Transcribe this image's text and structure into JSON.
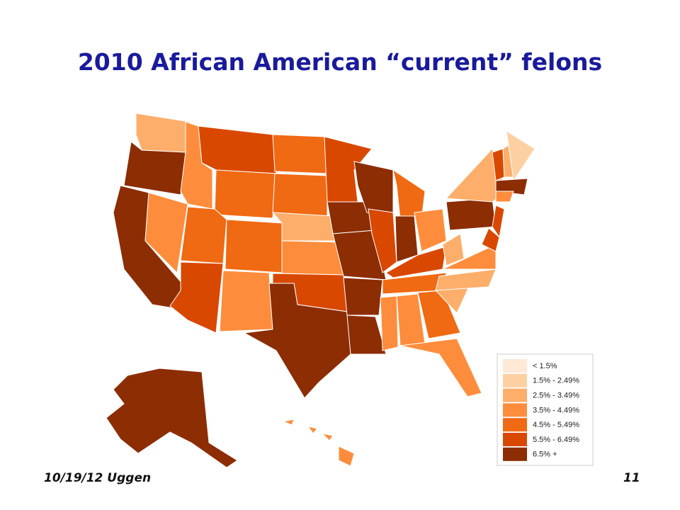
{
  "title": "2010 African American “current” felons",
  "legend": {
    "items": [
      {
        "label": "< 1.5%",
        "color": "#fee8d6"
      },
      {
        "label": "1.5% - 2.49%",
        "color": "#fdd0a2"
      },
      {
        "label": "2.5% - 3.49%",
        "color": "#fdae6b"
      },
      {
        "label": "3.5% - 4.49%",
        "color": "#fd8d3c"
      },
      {
        "label": "4.5% - 5.49%",
        "color": "#f06913"
      },
      {
        "label": "5.5% - 6.49%",
        "color": "#d94801"
      },
      {
        "label": "6.5% +",
        "color": "#8c2d04"
      }
    ]
  },
  "footer": {
    "date": "10/19/12 Uggen",
    "page": "11"
  }
}
